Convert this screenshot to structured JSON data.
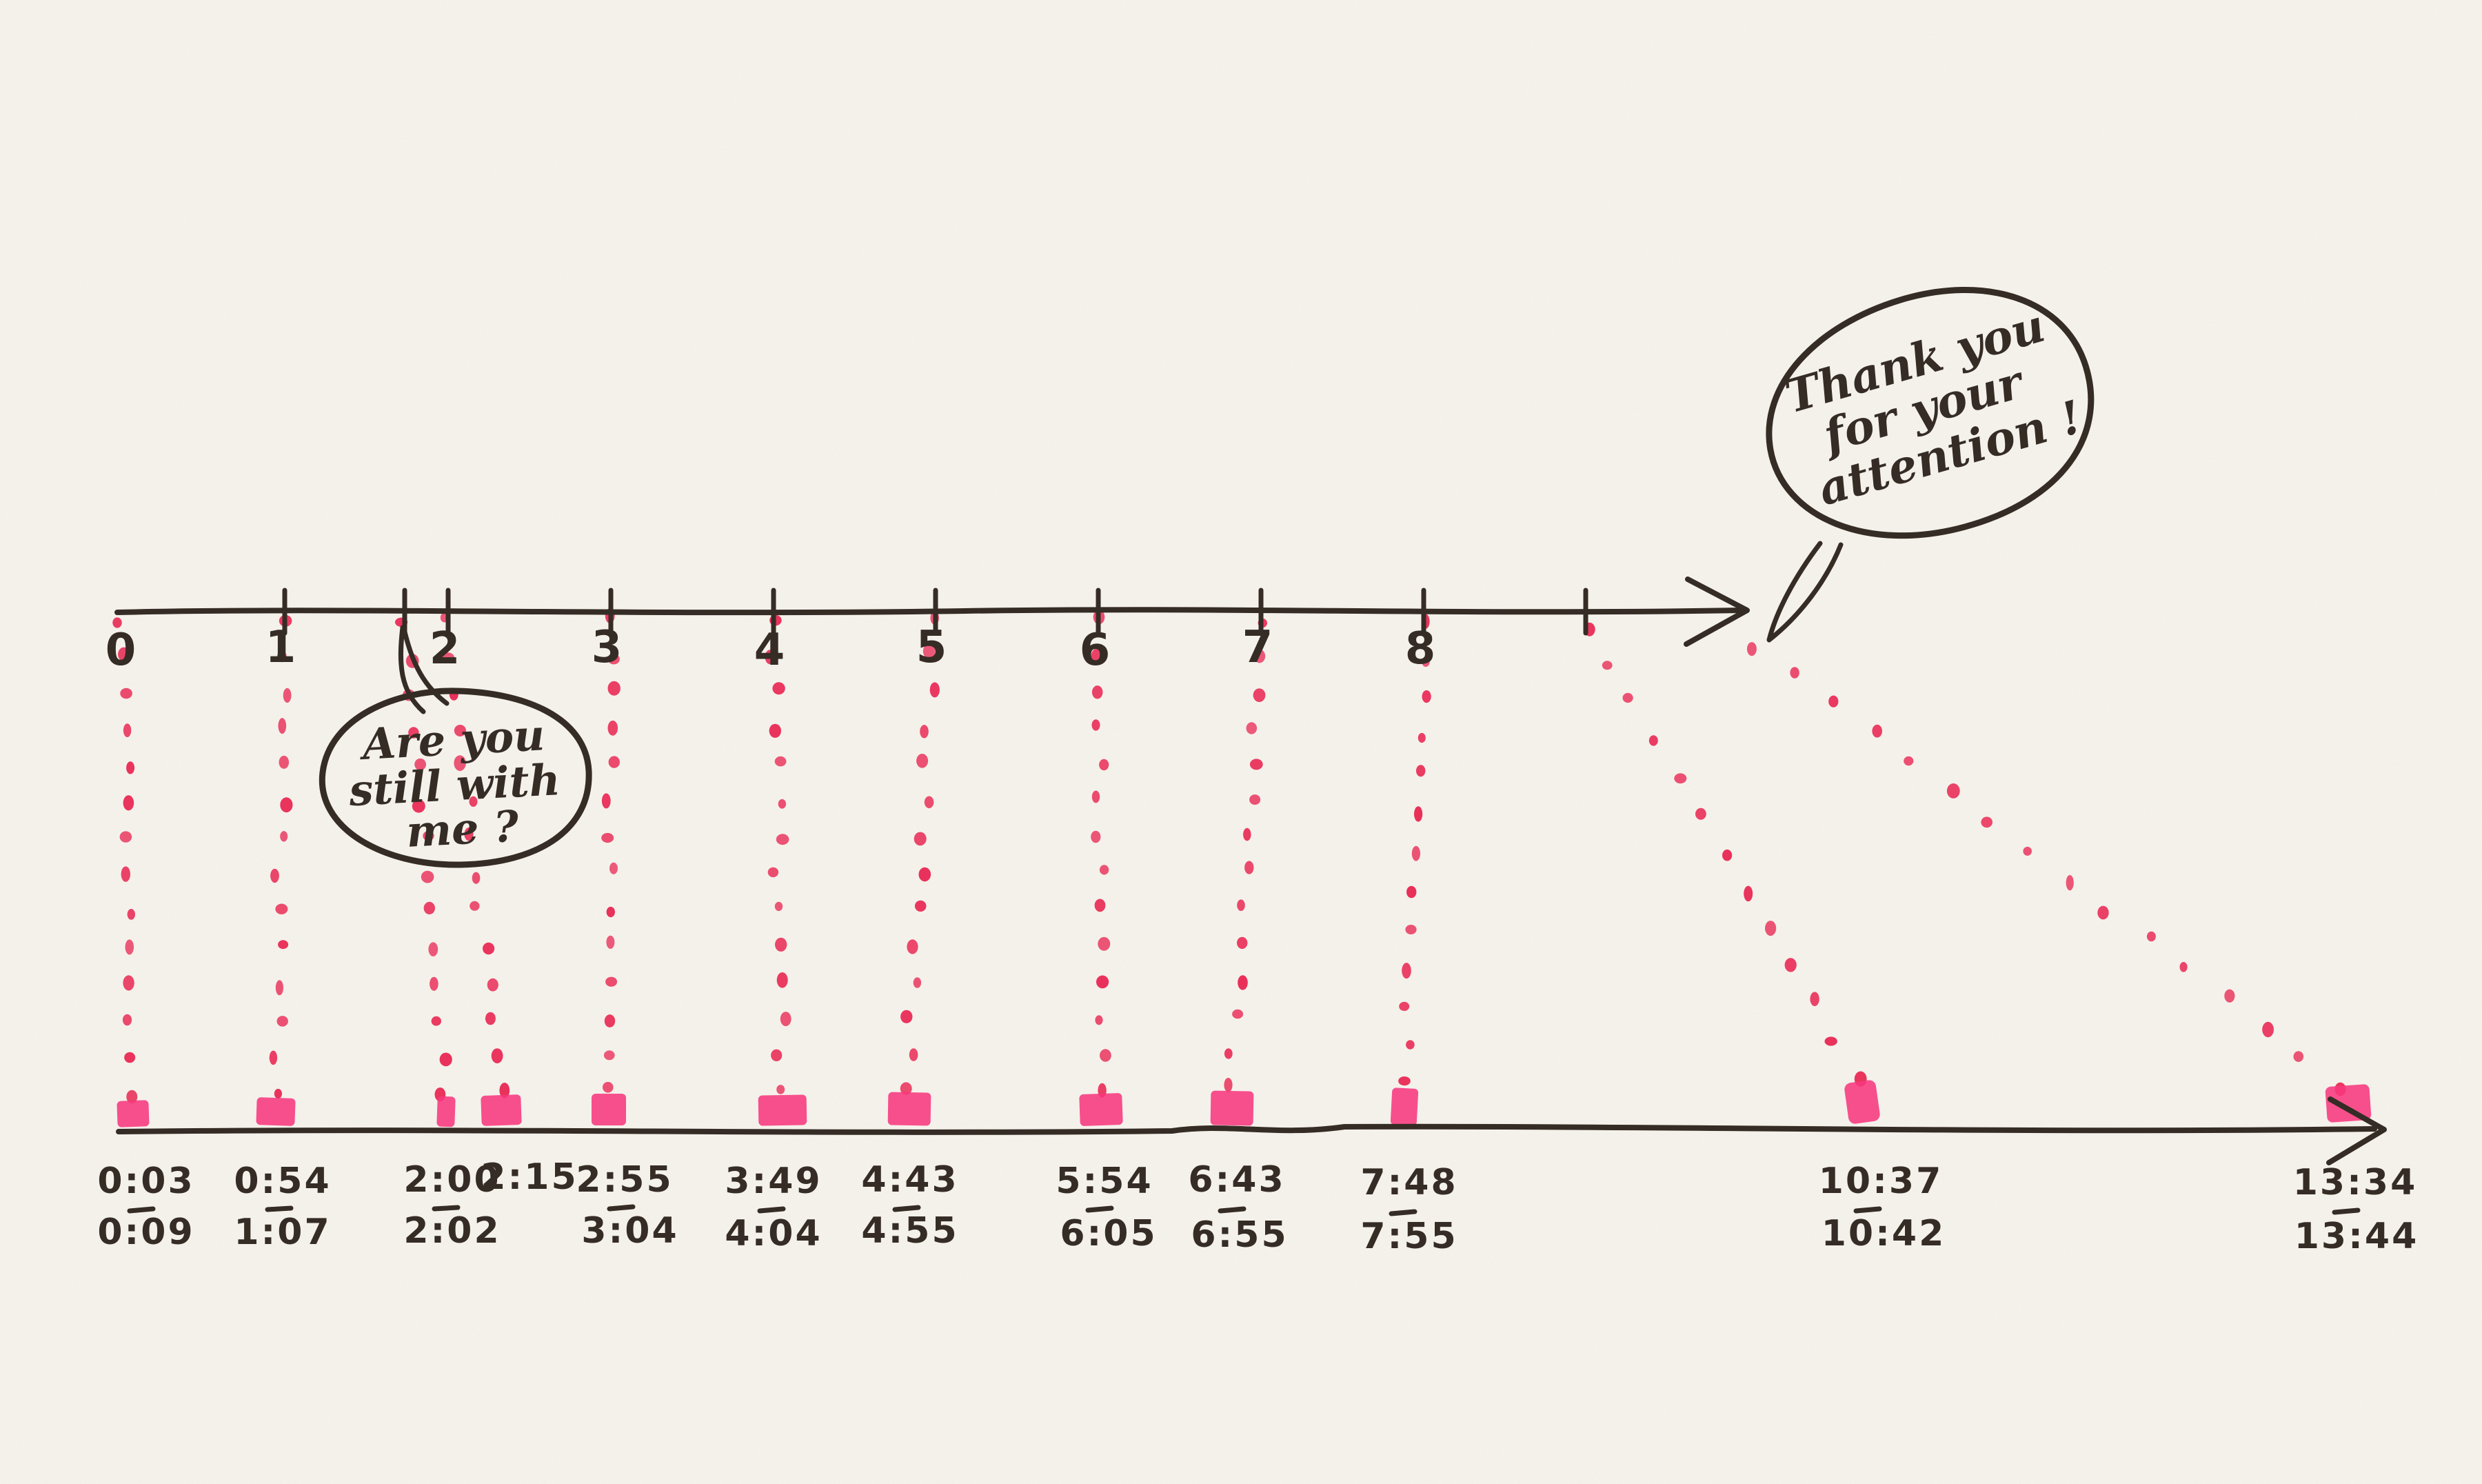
{
  "colors": {
    "paper": "#f6f3ed",
    "ink": "#352c25",
    "dot": "#e93059",
    "marker": "#f8387f"
  },
  "top_axis": {
    "tick_labels": [
      "0",
      "1",
      "2",
      "3",
      "4",
      "5",
      "6",
      "7",
      "8"
    ]
  },
  "bottom_axis": {
    "time_labels": [
      {
        "start": "0:03",
        "end": "0:09"
      },
      {
        "start": "0:54",
        "end": "1:07"
      },
      {
        "start": "2:00",
        "end": "2:02"
      },
      {
        "start": "2:15",
        "end": ""
      },
      {
        "start": "2:55",
        "end": "3:04"
      },
      {
        "start": "3:49",
        "end": "4:04"
      },
      {
        "start": "4:43",
        "end": "4:55"
      },
      {
        "start": "5:54",
        "end": "6:05"
      },
      {
        "start": "6:43",
        "end": "6:55"
      },
      {
        "start": "7:48",
        "end": "7:55"
      },
      {
        "start": "10:37",
        "end": "10:42"
      },
      {
        "start": "13:34",
        "end": "13:44"
      }
    ]
  },
  "speech_bubbles": {
    "question": {
      "lines": [
        "Are you",
        "still with",
        "me ?"
      ]
    },
    "thanks": {
      "lines": [
        "Thank you",
        "for your",
        "attention !"
      ]
    }
  },
  "chart_data": {
    "type": "timeline-mapping",
    "top_axis_tick_labels": [
      "0",
      "1",
      "2",
      "3",
      "4",
      "5",
      "6",
      "7",
      "8"
    ],
    "connections": [
      {
        "from_tick": "0",
        "to_time": "0:03–0:09"
      },
      {
        "from_tick": "1",
        "to_time": "0:54–1:07"
      },
      {
        "from_tick": "unlabeled tick before 2 (speech bubble: Are you still with me ?)",
        "to_time": "2:00–2:02"
      },
      {
        "from_tick": "2",
        "to_time": "2:15"
      },
      {
        "from_tick": "3",
        "to_time": "2:55–3:04"
      },
      {
        "from_tick": "4",
        "to_time": "3:49–4:04"
      },
      {
        "from_tick": "5",
        "to_time": "4:43–4:55"
      },
      {
        "from_tick": "6",
        "to_time": "5:54–6:05"
      },
      {
        "from_tick": "7",
        "to_time": "6:43–6:55"
      },
      {
        "from_tick": "8",
        "to_time": "7:48–7:55"
      },
      {
        "from_tick": "unlabeled tick after 8",
        "to_time": "10:37–10:42"
      },
      {
        "from_tick": "axis arrow end (speech bubble: Thank you for your attention !)",
        "to_time": "13:34–13:44"
      }
    ]
  }
}
